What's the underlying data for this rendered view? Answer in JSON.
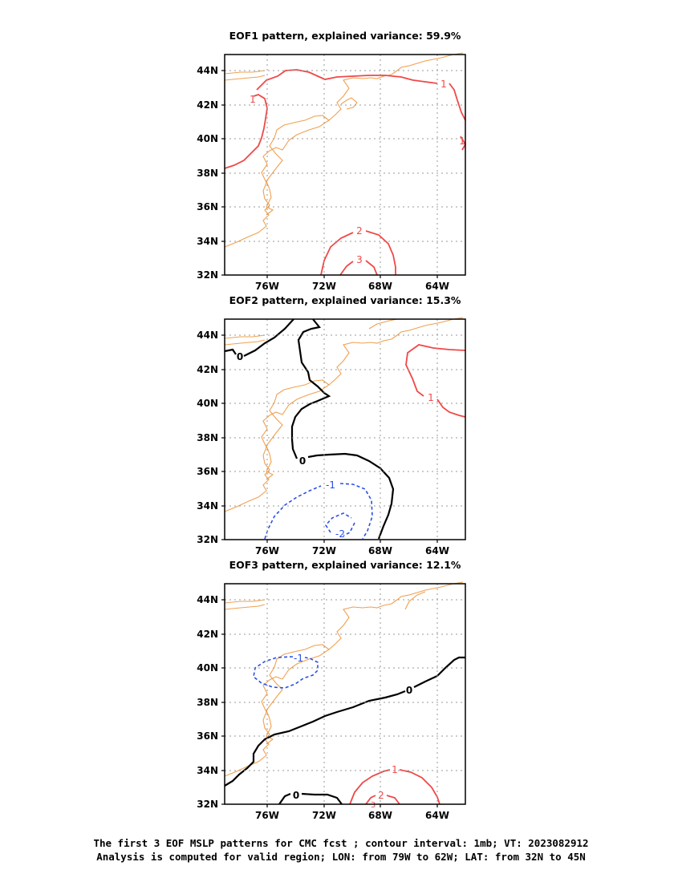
{
  "panels": [
    {
      "title": "EOF1 pattern, explained variance: 59.9%",
      "contour_labels": [
        "1",
        "1",
        "1",
        "2",
        "3"
      ]
    },
    {
      "title": "EOF2 pattern, explained variance: 15.3%",
      "contour_labels": [
        "0",
        "0",
        "1",
        "-1",
        "-2"
      ]
    },
    {
      "title": "EOF3 pattern, explained variance: 12.1%",
      "contour_labels": [
        "-1",
        "0",
        "0",
        "1",
        "2",
        "3"
      ]
    }
  ],
  "lat_ticks": [
    "44N",
    "42N",
    "40N",
    "38N",
    "36N",
    "34N",
    "32N"
  ],
  "lon_ticks": [
    "76W",
    "72W",
    "68W",
    "64W"
  ],
  "colors": {
    "coast": "#f0a050",
    "positive": "#f04848",
    "negative": "#2a50e8",
    "zero": "#000000",
    "grid": "#9a9a9a"
  },
  "caption": {
    "line1": "The first 3 EOF MSLP patterns for CMC fcst ; contour interval: 1mb; VT: 2023082912",
    "line2": "Analysis is computed for valid region; LON: from 79W to 62W; LAT: from 32N to 45N"
  }
}
